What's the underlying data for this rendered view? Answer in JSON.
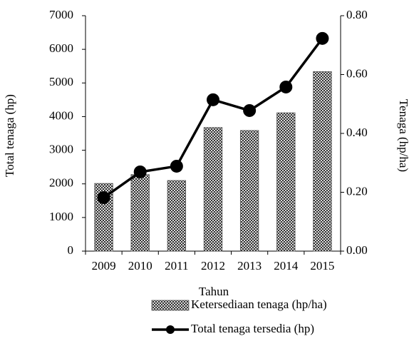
{
  "chart_data": {
    "type": "bar",
    "x_label": "Tahun",
    "y_label": "Total tenaga (hp)",
    "y2_label": "Tenaga (hp/ha)",
    "categories": [
      "2009",
      "2010",
      "2011",
      "2012",
      "2013",
      "2014",
      "2015"
    ],
    "series": [
      {
        "name": "Ketersediaan tenaga (hp/ha)",
        "type": "bar",
        "axis": "y2",
        "color": "#555555",
        "values": [
          0.23,
          0.26,
          0.24,
          0.42,
          0.41,
          0.47,
          0.61
        ]
      },
      {
        "name": "Total tenaga tersedia (hp)",
        "type": "line",
        "axis": "y",
        "color": "#000000",
        "values": [
          1590,
          2355,
          2525,
          4500,
          4180,
          4880,
          6325
        ]
      }
    ],
    "ylim": [
      0,
      7000
    ],
    "yticks": [
      0,
      1000,
      2000,
      3000,
      4000,
      5000,
      6000,
      7000
    ],
    "y2lim": [
      0,
      0.8
    ],
    "y2ticks": [
      {
        "value": 0,
        "label": "0.00"
      },
      {
        "value": 0.2,
        "label": "0.20"
      },
      {
        "value": 0.4,
        "label": "0.40"
      },
      {
        "value": 0.6,
        "label": "0.60"
      },
      {
        "value": 0.8,
        "label": "0.80"
      }
    ],
    "legend": "bottom",
    "grid": false
  }
}
